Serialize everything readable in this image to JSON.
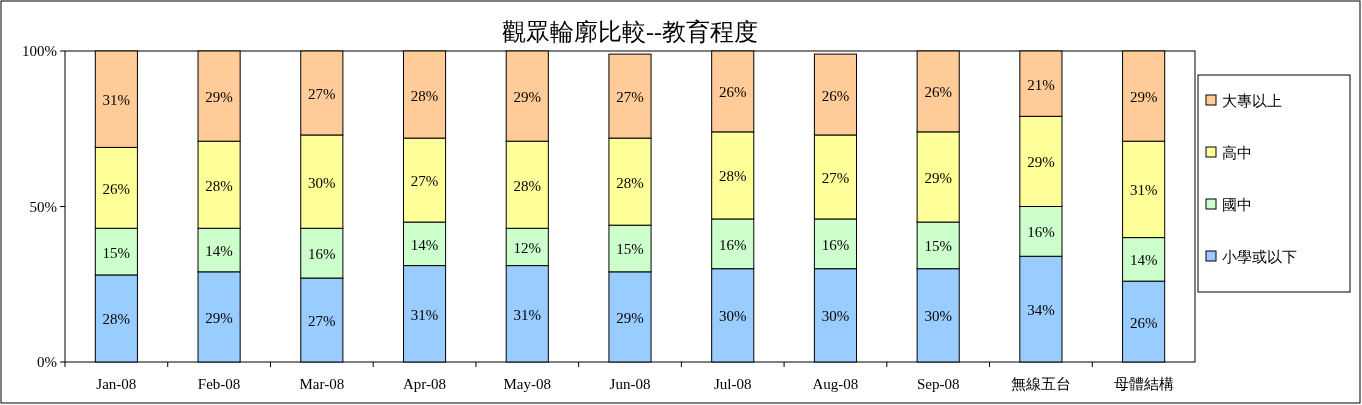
{
  "chart_data": {
    "type": "bar",
    "stacked": true,
    "title": "觀眾輪廓比較--教育程度",
    "categories": [
      "Jan-08",
      "Feb-08",
      "Mar-08",
      "Apr-08",
      "May-08",
      "Jun-08",
      "Jul-08",
      "Aug-08",
      "Sep-08",
      "無線五台",
      "母體結構"
    ],
    "series": [
      {
        "name": "小學或以下",
        "color": "#99ccff",
        "values": [
          28,
          29,
          27,
          31,
          31,
          29,
          30,
          30,
          30,
          34,
          26
        ],
        "value_labels": [
          "28%",
          "29%",
          "27%",
          "31%",
          "31%",
          "29%",
          "30%",
          "30%",
          "30%",
          "34%",
          "26%"
        ]
      },
      {
        "name": "國中",
        "color": "#ccffcc",
        "values": [
          15,
          14,
          16,
          14,
          12,
          15,
          16,
          16,
          15,
          16,
          14
        ],
        "value_labels": [
          "15%",
          "14%",
          "16%",
          "14%",
          "12%",
          "15%",
          "16%",
          "16%",
          "15%",
          "16%",
          "14%"
        ]
      },
      {
        "name": "高中",
        "color": "#ffff99",
        "values": [
          26,
          28,
          30,
          27,
          28,
          28,
          28,
          27,
          29,
          29,
          31
        ],
        "value_labels": [
          "26%",
          "28%",
          "30%",
          "27%",
          "28%",
          "28%",
          "28%",
          "27%",
          "29%",
          "29%",
          "31%"
        ]
      },
      {
        "name": "大專以上",
        "color": "#ffcc99",
        "values": [
          31,
          29,
          27,
          28,
          29,
          27,
          26,
          26,
          26,
          21,
          29
        ],
        "value_labels": [
          "31%",
          "29%",
          "27%",
          "28%",
          "29%",
          "27%",
          "26%",
          "26%",
          "26%",
          "21%",
          "29%"
        ]
      }
    ],
    "ylim": [
      0,
      100
    ],
    "yticks": [
      {
        "value": 0,
        "label": "0%"
      },
      {
        "value": 50,
        "label": "50%"
      },
      {
        "value": 100,
        "label": "100%"
      }
    ],
    "legend": "right",
    "grid": false
  }
}
